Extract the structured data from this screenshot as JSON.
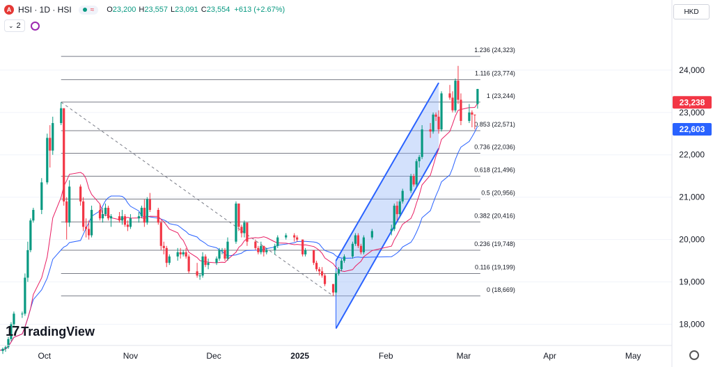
{
  "header": {
    "logo_letter": "A",
    "symbol": "HSI · 1D · HSI",
    "wave_glyph": "≈",
    "ohlc": {
      "o_label": "O",
      "o_value": "23,200",
      "h_label": "H",
      "h_value": "23,557",
      "l_label": "L",
      "l_value": "23,091",
      "c_label": "C",
      "c_value": "23,554",
      "change": "+613 (+2.67%)"
    },
    "indicator_count": "2",
    "currency": "HKD"
  },
  "brand": {
    "mark": "17",
    "name": "TradingView"
  },
  "colors": {
    "up": "#089981",
    "down": "#f23645",
    "ma_fast": "#e91e63",
    "ma_slow": "#2962ff",
    "channel_fill": "#90b4f8",
    "channel_line": "#2962ff",
    "fib": "#787b86",
    "price_tag_red": "#f23645",
    "price_tag_blue": "#2962ff"
  },
  "chart_data": {
    "type": "candlestick",
    "title": "HSI · 1D · HSI",
    "y_ticks": [
      "18,000",
      "19,000",
      "20,000",
      "21,000",
      "22,000",
      "23,000",
      "24,000"
    ],
    "y_tick_values": [
      18000,
      19000,
      20000,
      21000,
      22000,
      23000,
      24000
    ],
    "ylim": [
      17500,
      24900
    ],
    "x_ticks": [
      {
        "label": "Oct",
        "date": "2024-10-01",
        "bold": false
      },
      {
        "label": "Nov",
        "date": "2024-11-01",
        "bold": false
      },
      {
        "label": "Dec",
        "date": "2024-12-01",
        "bold": false
      },
      {
        "label": "2025",
        "date": "2025-01-01",
        "bold": true
      },
      {
        "label": "Feb",
        "date": "2025-02-01",
        "bold": false
      },
      {
        "label": "Mar",
        "date": "2025-03-01",
        "bold": false
      },
      {
        "label": "Apr",
        "date": "2025-04-01",
        "bold": false
      },
      {
        "label": "May",
        "date": "2025-05-01",
        "bold": false
      }
    ],
    "xlim": [
      "2024-09-15",
      "2025-05-15"
    ],
    "price_tags": [
      {
        "label": "23,238",
        "value": 23238,
        "color": "red"
      },
      {
        "label": "22,603",
        "value": 22603,
        "color": "blue"
      }
    ],
    "fib_levels": [
      {
        "ratio": "1.236",
        "label": "1.236 (24,323)",
        "value": 24323
      },
      {
        "ratio": "1.116",
        "label": "1.116 (23,774)",
        "value": 23774
      },
      {
        "ratio": "1",
        "label": "1 (23,244)",
        "value": 23244
      },
      {
        "ratio": "0.853",
        "label": "0.853 (22,571)",
        "value": 22571
      },
      {
        "ratio": "0.736",
        "label": "0.736 (22,036)",
        "value": 22036
      },
      {
        "ratio": "0.618",
        "label": "0.618 (21,496)",
        "value": 21496
      },
      {
        "ratio": "0.5",
        "label": "0.5 (20,956)",
        "value": 20956
      },
      {
        "ratio": "0.382",
        "label": "0.382 (20,416)",
        "value": 20416
      },
      {
        "ratio": "0.236",
        "label": "0.236 (19,748)",
        "value": 19748
      },
      {
        "ratio": "0.116",
        "label": "0.116 (19,199)",
        "value": 19199
      },
      {
        "ratio": "0",
        "label": "0 (18,669)",
        "value": 18669
      }
    ],
    "fib_range": {
      "start": "2024-10-07",
      "end": "2025-03-07"
    },
    "fib_swing": [
      {
        "date": "2024-10-07",
        "value": 23244
      },
      {
        "date": "2025-01-13",
        "value": 18669
      }
    ],
    "channel": {
      "lower": [
        {
          "date": "2025-01-14",
          "value": 17900
        },
        {
          "date": "2025-02-20",
          "value": 22150
        }
      ],
      "upper": [
        {
          "date": "2025-01-14",
          "value": 19500
        },
        {
          "date": "2025-02-20",
          "value": 23700
        }
      ]
    },
    "candles": [
      {
        "date": "2024-09-13",
        "o": 17350,
        "h": 17400,
        "l": 17250,
        "c": 17370
      },
      {
        "date": "2024-09-16",
        "o": 17370,
        "h": 17450,
        "l": 17300,
        "c": 17420
      },
      {
        "date": "2024-09-17",
        "o": 17420,
        "h": 17500,
        "l": 17350,
        "c": 17460
      },
      {
        "date": "2024-09-18",
        "o": 17460,
        "h": 17700,
        "l": 17420,
        "c": 17650
      },
      {
        "date": "2024-09-19",
        "o": 17650,
        "h": 18050,
        "l": 17600,
        "c": 18000
      },
      {
        "date": "2024-09-20",
        "o": 18000,
        "h": 18300,
        "l": 17950,
        "c": 18250
      },
      {
        "date": "2024-09-23",
        "o": 18250,
        "h": 18300,
        "l": 18150,
        "c": 18250
      },
      {
        "date": "2024-09-24",
        "o": 18250,
        "h": 19200,
        "l": 18200,
        "c": 19100
      },
      {
        "date": "2024-09-25",
        "o": 19100,
        "h": 19950,
        "l": 19000,
        "c": 19750
      },
      {
        "date": "2024-09-26",
        "o": 19750,
        "h": 20500,
        "l": 19700,
        "c": 20450
      },
      {
        "date": "2024-09-27",
        "o": 20450,
        "h": 20750,
        "l": 20400,
        "c": 20700
      },
      {
        "date": "2024-09-30",
        "o": 20700,
        "h": 21450,
        "l": 20600,
        "c": 21350
      },
      {
        "date": "2024-10-02",
        "o": 21350,
        "h": 22500,
        "l": 21300,
        "c": 22400
      },
      {
        "date": "2024-10-03",
        "o": 22400,
        "h": 22700,
        "l": 21700,
        "c": 22100
      },
      {
        "date": "2024-10-04",
        "o": 22100,
        "h": 22900,
        "l": 22000,
        "c": 22750
      },
      {
        "date": "2024-10-07",
        "o": 22750,
        "h": 23244,
        "l": 22700,
        "c": 23100
      },
      {
        "date": "2024-10-08",
        "o": 23100,
        "h": 23100,
        "l": 20800,
        "c": 20900
      },
      {
        "date": "2024-10-09",
        "o": 20900,
        "h": 21000,
        "l": 20000,
        "c": 20400
      },
      {
        "date": "2024-10-10",
        "o": 20400,
        "h": 21400,
        "l": 20300,
        "c": 21250
      },
      {
        "date": "2024-10-14",
        "o": 21250,
        "h": 21300,
        "l": 20800,
        "c": 20900
      },
      {
        "date": "2024-10-15",
        "o": 20900,
        "h": 21000,
        "l": 20200,
        "c": 20300
      },
      {
        "date": "2024-10-16",
        "o": 20300,
        "h": 20500,
        "l": 20050,
        "c": 20250
      },
      {
        "date": "2024-10-17",
        "o": 20250,
        "h": 20450,
        "l": 20000,
        "c": 20100
      },
      {
        "date": "2024-10-18",
        "o": 20100,
        "h": 20800,
        "l": 20050,
        "c": 20700
      },
      {
        "date": "2024-10-21",
        "o": 20700,
        "h": 20850,
        "l": 20450,
        "c": 20500
      },
      {
        "date": "2024-10-22",
        "o": 20500,
        "h": 20750,
        "l": 20400,
        "c": 20600
      },
      {
        "date": "2024-10-23",
        "o": 20600,
        "h": 20850,
        "l": 20550,
        "c": 20750
      },
      {
        "date": "2024-10-24",
        "o": 20750,
        "h": 20800,
        "l": 20450,
        "c": 20500
      },
      {
        "date": "2024-10-25",
        "o": 20500,
        "h": 20600,
        "l": 20300,
        "c": 20550
      },
      {
        "date": "2024-10-28",
        "o": 20550,
        "h": 20650,
        "l": 20400,
        "c": 20450
      },
      {
        "date": "2024-10-29",
        "o": 20450,
        "h": 20700,
        "l": 20350,
        "c": 20550
      },
      {
        "date": "2024-10-30",
        "o": 20550,
        "h": 20600,
        "l": 20300,
        "c": 20350
      },
      {
        "date": "2024-10-31",
        "o": 20350,
        "h": 20450,
        "l": 20200,
        "c": 20300
      },
      {
        "date": "2024-11-01",
        "o": 20300,
        "h": 20600,
        "l": 20250,
        "c": 20500
      },
      {
        "date": "2024-11-04",
        "o": 20500,
        "h": 20650,
        "l": 20400,
        "c": 20550
      },
      {
        "date": "2024-11-05",
        "o": 20550,
        "h": 20800,
        "l": 20500,
        "c": 20750
      },
      {
        "date": "2024-11-06",
        "o": 20750,
        "h": 20950,
        "l": 20300,
        "c": 20400
      },
      {
        "date": "2024-11-07",
        "o": 20400,
        "h": 21000,
        "l": 20350,
        "c": 20950
      },
      {
        "date": "2024-11-08",
        "o": 20950,
        "h": 21100,
        "l": 20650,
        "c": 20700
      },
      {
        "date": "2024-11-11",
        "o": 20700,
        "h": 20750,
        "l": 20350,
        "c": 20400
      },
      {
        "date": "2024-11-12",
        "o": 20400,
        "h": 20450,
        "l": 19750,
        "c": 19850
      },
      {
        "date": "2024-11-13",
        "o": 19850,
        "h": 19950,
        "l": 19650,
        "c": 19800
      },
      {
        "date": "2024-11-14",
        "o": 19800,
        "h": 19850,
        "l": 19350,
        "c": 19450
      },
      {
        "date": "2024-11-15",
        "o": 19450,
        "h": 19650,
        "l": 19400,
        "c": 19600
      },
      {
        "date": "2024-11-18",
        "o": 19600,
        "h": 19800,
        "l": 19500,
        "c": 19700
      },
      {
        "date": "2024-11-19",
        "o": 19700,
        "h": 19800,
        "l": 19550,
        "c": 19650
      },
      {
        "date": "2024-11-20",
        "o": 19650,
        "h": 19750,
        "l": 19600,
        "c": 19700
      },
      {
        "date": "2024-11-21",
        "o": 19700,
        "h": 19800,
        "l": 19550,
        "c": 19600
      },
      {
        "date": "2024-11-22",
        "o": 19600,
        "h": 19650,
        "l": 19200,
        "c": 19250
      },
      {
        "date": "2024-11-25",
        "o": 19250,
        "h": 19450,
        "l": 19100,
        "c": 19150
      },
      {
        "date": "2024-11-26",
        "o": 19150,
        "h": 19200,
        "l": 19050,
        "c": 19150
      },
      {
        "date": "2024-11-27",
        "o": 19150,
        "h": 19700,
        "l": 19100,
        "c": 19600
      },
      {
        "date": "2024-11-28",
        "o": 19600,
        "h": 19650,
        "l": 19350,
        "c": 19400
      },
      {
        "date": "2024-11-29",
        "o": 19400,
        "h": 19550,
        "l": 19300,
        "c": 19450
      },
      {
        "date": "2024-12-02",
        "o": 19450,
        "h": 19600,
        "l": 19400,
        "c": 19550
      },
      {
        "date": "2024-12-03",
        "o": 19550,
        "h": 19800,
        "l": 19500,
        "c": 19750
      },
      {
        "date": "2024-12-04",
        "o": 19750,
        "h": 19800,
        "l": 19650,
        "c": 19750
      },
      {
        "date": "2024-12-05",
        "o": 19750,
        "h": 19800,
        "l": 19500,
        "c": 19550
      },
      {
        "date": "2024-12-06",
        "o": 19550,
        "h": 20050,
        "l": 19500,
        "c": 19950
      },
      {
        "date": "2024-12-09",
        "o": 19950,
        "h": 20900,
        "l": 19900,
        "c": 20850
      },
      {
        "date": "2024-12-10",
        "o": 20850,
        "h": 20850,
        "l": 20200,
        "c": 20300
      },
      {
        "date": "2024-12-11",
        "o": 20300,
        "h": 20350,
        "l": 20050,
        "c": 20150
      },
      {
        "date": "2024-12-12",
        "o": 20150,
        "h": 20450,
        "l": 20050,
        "c": 20400
      },
      {
        "date": "2024-12-13",
        "o": 20400,
        "h": 20400,
        "l": 19850,
        "c": 19950
      },
      {
        "date": "2024-12-16",
        "o": 19950,
        "h": 20000,
        "l": 19750,
        "c": 19800
      },
      {
        "date": "2024-12-17",
        "o": 19800,
        "h": 19850,
        "l": 19650,
        "c": 19700
      },
      {
        "date": "2024-12-18",
        "o": 19700,
        "h": 19950,
        "l": 19650,
        "c": 19850
      },
      {
        "date": "2024-12-19",
        "o": 19850,
        "h": 19850,
        "l": 19600,
        "c": 19700
      },
      {
        "date": "2024-12-20",
        "o": 19700,
        "h": 19800,
        "l": 19650,
        "c": 19750
      },
      {
        "date": "2024-12-23",
        "o": 19750,
        "h": 19900,
        "l": 19650,
        "c": 19850
      },
      {
        "date": "2024-12-24",
        "o": 19850,
        "h": 20100,
        "l": 19800,
        "c": 20050
      },
      {
        "date": "2024-12-27",
        "o": 20050,
        "h": 20150,
        "l": 20000,
        "c": 20100
      },
      {
        "date": "2024-12-30",
        "o": 20100,
        "h": 20150,
        "l": 19950,
        "c": 20050
      },
      {
        "date": "2024-12-31",
        "o": 20050,
        "h": 20100,
        "l": 19950,
        "c": 20000
      },
      {
        "date": "2025-01-02",
        "o": 20000,
        "h": 20000,
        "l": 19600,
        "c": 19650
      },
      {
        "date": "2025-01-03",
        "o": 19650,
        "h": 19800,
        "l": 19600,
        "c": 19750
      },
      {
        "date": "2025-01-06",
        "o": 19750,
        "h": 19750,
        "l": 19400,
        "c": 19450
      },
      {
        "date": "2025-01-07",
        "o": 19450,
        "h": 19500,
        "l": 19250,
        "c": 19300
      },
      {
        "date": "2025-01-08",
        "o": 19300,
        "h": 19350,
        "l": 19150,
        "c": 19250
      },
      {
        "date": "2025-01-09",
        "o": 19250,
        "h": 19350,
        "l": 19100,
        "c": 19150
      },
      {
        "date": "2025-01-10",
        "o": 19150,
        "h": 19200,
        "l": 18900,
        "c": 18950
      },
      {
        "date": "2025-01-13",
        "o": 18950,
        "h": 18950,
        "l": 18669,
        "c": 18750
      },
      {
        "date": "2025-01-14",
        "o": 18750,
        "h": 19250,
        "l": 18700,
        "c": 19200
      },
      {
        "date": "2025-01-15",
        "o": 19200,
        "h": 19350,
        "l": 19150,
        "c": 19300
      },
      {
        "date": "2025-01-16",
        "o": 19300,
        "h": 19550,
        "l": 19250,
        "c": 19500
      },
      {
        "date": "2025-01-17",
        "o": 19500,
        "h": 19650,
        "l": 19450,
        "c": 19600
      },
      {
        "date": "2025-01-20",
        "o": 19600,
        "h": 19950,
        "l": 19550,
        "c": 19900
      },
      {
        "date": "2025-01-21",
        "o": 19900,
        "h": 20150,
        "l": 19850,
        "c": 20100
      },
      {
        "date": "2025-01-22",
        "o": 20100,
        "h": 20150,
        "l": 19800,
        "c": 19850
      },
      {
        "date": "2025-01-23",
        "o": 19850,
        "h": 19900,
        "l": 19650,
        "c": 19700
      },
      {
        "date": "2025-01-24",
        "o": 19700,
        "h": 20100,
        "l": 19650,
        "c": 20050
      },
      {
        "date": "2025-01-27",
        "o": 20050,
        "h": 20250,
        "l": 20000,
        "c": 20200
      },
      {
        "date": "2025-02-03",
        "o": 20200,
        "h": 20350,
        "l": 20100,
        "c": 20250
      },
      {
        "date": "2025-02-04",
        "o": 20250,
        "h": 20850,
        "l": 20200,
        "c": 20800
      },
      {
        "date": "2025-02-05",
        "o": 20800,
        "h": 20900,
        "l": 20450,
        "c": 20600
      },
      {
        "date": "2025-02-06",
        "o": 20600,
        "h": 20950,
        "l": 20550,
        "c": 20900
      },
      {
        "date": "2025-02-07",
        "o": 20900,
        "h": 21200,
        "l": 20850,
        "c": 21150
      },
      {
        "date": "2025-02-10",
        "o": 21150,
        "h": 21550,
        "l": 21100,
        "c": 21500
      },
      {
        "date": "2025-02-11",
        "o": 21500,
        "h": 21550,
        "l": 21250,
        "c": 21300
      },
      {
        "date": "2025-02-12",
        "o": 21300,
        "h": 21900,
        "l": 21250,
        "c": 21850
      },
      {
        "date": "2025-02-13",
        "o": 21850,
        "h": 22000,
        "l": 21700,
        "c": 21950
      },
      {
        "date": "2025-02-14",
        "o": 21950,
        "h": 22700,
        "l": 21900,
        "c": 22600
      },
      {
        "date": "2025-02-17",
        "o": 22600,
        "h": 22750,
        "l": 22400,
        "c": 22550
      },
      {
        "date": "2025-02-18",
        "o": 22550,
        "h": 23000,
        "l": 22500,
        "c": 22950
      },
      {
        "date": "2025-02-19",
        "o": 22950,
        "h": 23000,
        "l": 22800,
        "c": 22900
      },
      {
        "date": "2025-02-20",
        "o": 22900,
        "h": 23050,
        "l": 22500,
        "c": 22600
      },
      {
        "date": "2025-02-21",
        "o": 22600,
        "h": 23500,
        "l": 22550,
        "c": 23450
      },
      {
        "date": "2025-02-24",
        "o": 23450,
        "h": 23650,
        "l": 23300,
        "c": 23350
      },
      {
        "date": "2025-02-25",
        "o": 23350,
        "h": 23500,
        "l": 23000,
        "c": 23050
      },
      {
        "date": "2025-02-26",
        "o": 23050,
        "h": 23800,
        "l": 23000,
        "c": 23750
      },
      {
        "date": "2025-02-27",
        "o": 23750,
        "h": 24100,
        "l": 23200,
        "c": 23300
      },
      {
        "date": "2025-02-28",
        "o": 23300,
        "h": 23450,
        "l": 22700,
        "c": 22800
      },
      {
        "date": "2025-03-03",
        "o": 22800,
        "h": 23200,
        "l": 22750,
        "c": 23000
      },
      {
        "date": "2025-03-04",
        "o": 23000,
        "h": 23050,
        "l": 22650,
        "c": 22950
      },
      {
        "date": "2025-03-05",
        "o": 22950,
        "h": 22950,
        "l": 22600,
        "c": 22941
      },
      {
        "date": "2025-03-06",
        "o": 23200,
        "h": 23557,
        "l": 23091,
        "c": 23554
      }
    ]
  }
}
